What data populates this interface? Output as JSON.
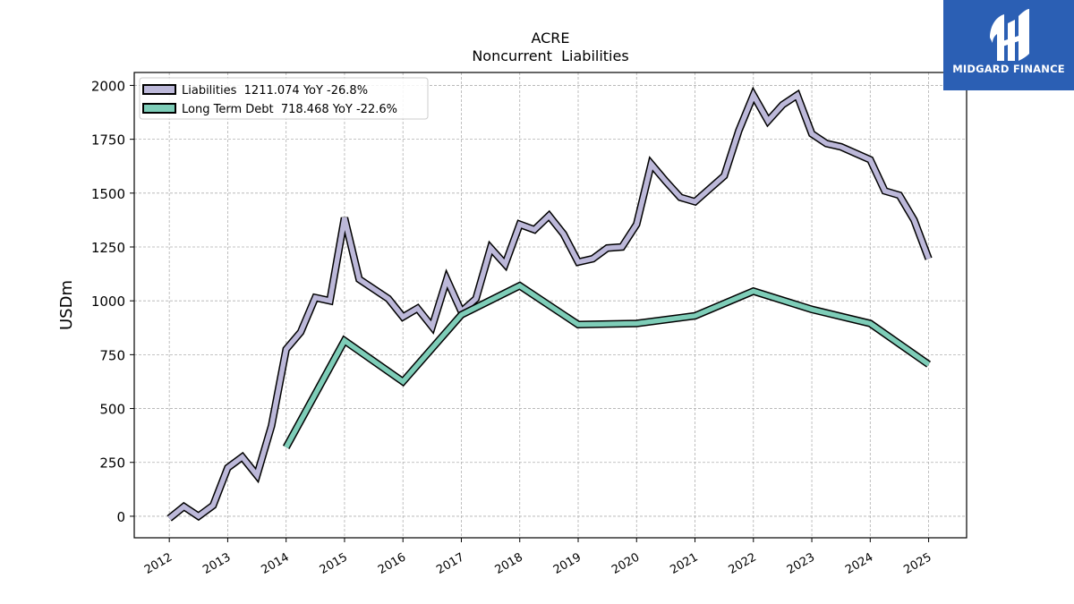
{
  "chart_data": {
    "type": "line",
    "title": "ACRE",
    "subtitle": "Noncurrent  Liabilities",
    "ylabel": "USDm",
    "xlabel": "",
    "xlim": [
      2011.4,
      2025.65
    ],
    "ylim": [
      -100,
      2060
    ],
    "x_ticks": [
      "2012",
      "2013",
      "2014",
      "2015",
      "2016",
      "2017",
      "2018",
      "2019",
      "2020",
      "2021",
      "2022",
      "2023",
      "2024",
      "2025"
    ],
    "y_ticks": [
      0,
      250,
      500,
      750,
      1000,
      1250,
      1500,
      1750,
      2000
    ],
    "grid": true,
    "legend_position": "top-left",
    "series": [
      {
        "name": "Liabilities",
        "legend_label": "Liabilities  1211.074 YoY -26.8%",
        "color": "#bcb8d9",
        "points": [
          [
            2012.0,
            -10
          ],
          [
            2012.25,
            45
          ],
          [
            2012.5,
            0
          ],
          [
            2012.75,
            50
          ],
          [
            2013.0,
            225
          ],
          [
            2013.25,
            275
          ],
          [
            2013.5,
            190
          ],
          [
            2013.75,
            420
          ],
          [
            2014.0,
            775
          ],
          [
            2014.25,
            855
          ],
          [
            2014.5,
            1015
          ],
          [
            2014.75,
            1000
          ],
          [
            2015.0,
            1385
          ],
          [
            2015.25,
            1100
          ],
          [
            2015.5,
            1055
          ],
          [
            2015.75,
            1010
          ],
          [
            2016.0,
            925
          ],
          [
            2016.25,
            965
          ],
          [
            2016.5,
            880
          ],
          [
            2016.75,
            1100
          ],
          [
            2017.0,
            950
          ],
          [
            2017.25,
            1010
          ],
          [
            2017.5,
            1245
          ],
          [
            2017.75,
            1170
          ],
          [
            2018.0,
            1355
          ],
          [
            2018.25,
            1330
          ],
          [
            2018.5,
            1395
          ],
          [
            2018.75,
            1310
          ],
          [
            2019.0,
            1180
          ],
          [
            2019.25,
            1195
          ],
          [
            2019.5,
            1245
          ],
          [
            2019.75,
            1250
          ],
          [
            2020.0,
            1355
          ],
          [
            2020.25,
            1635
          ],
          [
            2020.5,
            1555
          ],
          [
            2020.75,
            1480
          ],
          [
            2021.0,
            1460
          ],
          [
            2021.25,
            1520
          ],
          [
            2021.5,
            1580
          ],
          [
            2021.75,
            1790
          ],
          [
            2022.0,
            1955
          ],
          [
            2022.25,
            1835
          ],
          [
            2022.5,
            1910
          ],
          [
            2022.75,
            1955
          ],
          [
            2023.0,
            1775
          ],
          [
            2023.25,
            1730
          ],
          [
            2023.5,
            1715
          ],
          [
            2023.75,
            1685
          ],
          [
            2024.0,
            1655
          ],
          [
            2024.25,
            1510
          ],
          [
            2024.5,
            1490
          ],
          [
            2024.75,
            1375
          ],
          [
            2025.0,
            1195
          ]
        ]
      },
      {
        "name": "Long Term Debt",
        "legend_label": "Long Term Debt  718.468 YoY -22.6%",
        "color": "#7ecdb8",
        "points": [
          [
            2014.0,
            320
          ],
          [
            2015.0,
            815
          ],
          [
            2016.0,
            625
          ],
          [
            2017.0,
            935
          ],
          [
            2018.0,
            1070
          ],
          [
            2019.0,
            890
          ],
          [
            2020.0,
            895
          ],
          [
            2021.0,
            930
          ],
          [
            2022.0,
            1045
          ],
          [
            2023.0,
            960
          ],
          [
            2024.0,
            895
          ],
          [
            2025.0,
            705
          ]
        ]
      }
    ]
  },
  "logo": {
    "text": "MIDGARD FINANCE",
    "bg_color": "#2b5fb4"
  }
}
